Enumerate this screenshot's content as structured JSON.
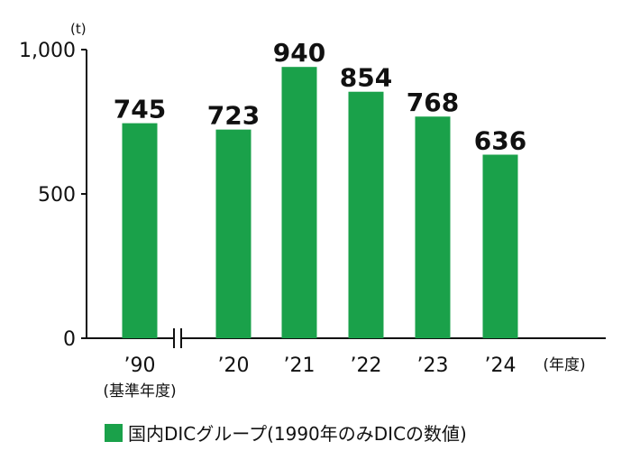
{
  "chart_data": {
    "type": "bar",
    "categories": [
      "’90",
      "’20",
      "’21",
      "’22",
      "’23",
      "’24"
    ],
    "category_sublabels": [
      "(基準年度)",
      "",
      "",
      "",
      "",
      ""
    ],
    "values": [
      745,
      723,
      940,
      854,
      768,
      636
    ],
    "value_labels": [
      "745",
      "723",
      "940",
      "854",
      "768",
      "636"
    ],
    "series": [
      {
        "name": "国内DICグループ(1990年のみDICの数値)",
        "values": [
          745,
          723,
          940,
          854,
          768,
          636
        ]
      }
    ],
    "y_unit": "(t)",
    "x_unit": "(年度)",
    "ylim": [
      0,
      1000
    ],
    "yticks": [
      0,
      500,
      1000
    ],
    "ytick_labels": [
      "0",
      "500",
      "1,000"
    ],
    "axis_break_after_index": 0,
    "grid": false,
    "legend_position": "bottom",
    "bar_color": "#1aa14a"
  }
}
